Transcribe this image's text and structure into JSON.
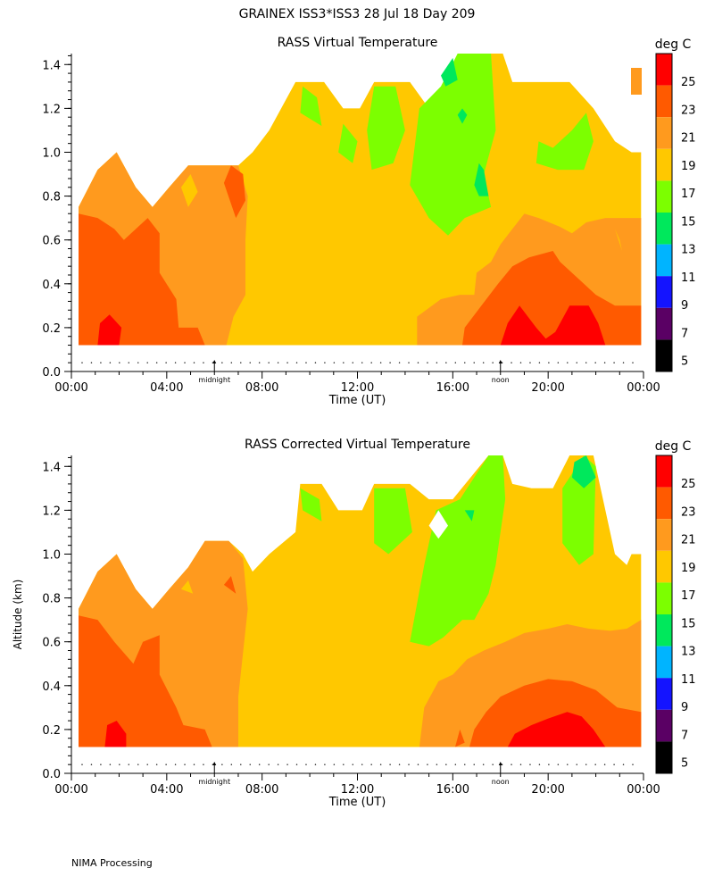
{
  "page_title": "GRAINEX ISS3*ISS3  28 Jul 18 Day 209",
  "footer": "NIMA Processing",
  "chart_data": [
    {
      "type": "heatmap",
      "title": "RASS Virtual Temperature",
      "xlabel": "Time (UT)",
      "ylabel": "",
      "x_ticks": [
        "00:00",
        "04:00",
        "08:00",
        "12:00",
        "16:00",
        "20:00",
        "00:00"
      ],
      "xlim_hours": [
        0,
        24
      ],
      "y_ticks": [
        "0.0",
        "0.2",
        "0.4",
        "0.6",
        "0.8",
        "1.0",
        "1.2",
        "1.4"
      ],
      "ylim_km": [
        0,
        1.45
      ],
      "markers": [
        {
          "label": "midnight",
          "hour": 6
        },
        {
          "label": "noon",
          "hour": 18
        }
      ],
      "colorbar": {
        "title": "deg C",
        "labels": [
          "25",
          "23",
          "21",
          "19",
          "17",
          "15",
          "13",
          "11",
          "9",
          "7",
          "5"
        ]
      },
      "approx_regions": [
        {
          "time_range": "00:00-04:00",
          "altitude_km": "0.1-0.6",
          "temp_c": "21-23"
        },
        {
          "time_range": "01:00-02:00",
          "altitude_km": "0.1-0.25",
          "temp_c": ">25"
        },
        {
          "time_range": "04:00-08:00",
          "altitude_km": "0.1-0.9",
          "temp_c": "19-21"
        },
        {
          "time_range": "08:00-14:30",
          "altitude_km": "0.1-1.3",
          "temp_c": "17-19"
        },
        {
          "time_range": "14:30-18:00",
          "altitude_km": "0.6-1.45",
          "temp_c": "15-17"
        },
        {
          "time_range": "18:00-22:00",
          "altitude_km": "0.1-0.3",
          "temp_c": ">25"
        }
      ]
    },
    {
      "type": "heatmap",
      "title": "RASS Corrected Virtual Temperature",
      "xlabel": "Time (UT)",
      "ylabel": "Altitude (km)",
      "x_ticks": [
        "00:00",
        "04:00",
        "08:00",
        "12:00",
        "16:00",
        "20:00",
        "00:00"
      ],
      "xlim_hours": [
        0,
        24
      ],
      "y_ticks": [
        "0.0",
        "0.2",
        "0.4",
        "0.6",
        "0.8",
        "1.0",
        "1.2",
        "1.4"
      ],
      "ylim_km": [
        0,
        1.45
      ],
      "markers": [
        {
          "label": "midnight",
          "hour": 6
        },
        {
          "label": "noon",
          "hour": 18
        }
      ],
      "colorbar": {
        "title": "deg C",
        "labels": [
          "25",
          "23",
          "21",
          "19",
          "17",
          "15",
          "13",
          "11",
          "9",
          "7",
          "5"
        ]
      },
      "approx_regions": [
        {
          "time_range": "00:00-04:00",
          "altitude_km": "0.1-0.6",
          "temp_c": "21-23"
        },
        {
          "time_range": "01:30-02:30",
          "altitude_km": "0.1-0.25",
          "temp_c": ">25"
        },
        {
          "time_range": "04:00-08:00",
          "altitude_km": "0.1-1.0",
          "temp_c": "19-21"
        },
        {
          "time_range": "08:00-15:00",
          "altitude_km": "0.1-1.3",
          "temp_c": "17-19"
        },
        {
          "time_range": "15:00-19:00",
          "altitude_km": "0.7-1.45",
          "temp_c": "15-17"
        },
        {
          "time_range": "18:30-22:00",
          "altitude_km": "0.1-0.3",
          "temp_c": ">25"
        }
      ]
    }
  ],
  "colors": {
    "scale": [
      "#ff0000",
      "#ff5a00",
      "#ff9a1e",
      "#ffc800",
      "#7cff00",
      "#00e85c",
      "#00b4ff",
      "#1414ff",
      "#5a0064",
      "#000000"
    ],
    "scale_top": "#ff0000"
  }
}
